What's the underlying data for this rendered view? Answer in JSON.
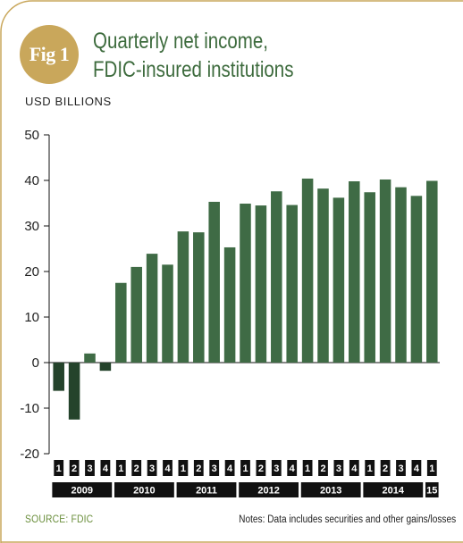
{
  "figure": {
    "badge": "Fig 1",
    "title_line1": "Quarterly net income,",
    "title_line2": "FDIC-insured institutions",
    "unit_label": "USD BILLIONS",
    "source": "SOURCE: FDIC",
    "notes": "Notes: Data includes securities and other gains/losses"
  },
  "colors": {
    "accent_gold": "#c9a75b",
    "title_green": "#3d6b3d",
    "bar_positive": "#3f6b45",
    "bar_negative": "#24432b",
    "axis_dark": "#111111"
  },
  "chart_data": {
    "type": "bar",
    "title": "Quarterly net income, FDIC-insured institutions",
    "ylabel": "USD BILLIONS",
    "ylim": [
      -20,
      50
    ],
    "yticks": [
      -20,
      -10,
      0,
      10,
      20,
      30,
      40,
      50
    ],
    "grid": false,
    "categories": [
      "1",
      "2",
      "3",
      "4",
      "1",
      "2",
      "3",
      "4",
      "1",
      "2",
      "3",
      "4",
      "1",
      "2",
      "3",
      "4",
      "1",
      "2",
      "3",
      "4",
      "1",
      "2",
      "3",
      "4",
      "1"
    ],
    "years": [
      {
        "label": "2009",
        "count": 4
      },
      {
        "label": "2010",
        "count": 4
      },
      {
        "label": "2011",
        "count": 4
      },
      {
        "label": "2012",
        "count": 4
      },
      {
        "label": "2013",
        "count": 4
      },
      {
        "label": "2014",
        "count": 4
      },
      {
        "label": "15",
        "count": 1
      }
    ],
    "values": [
      -6.2,
      -12.5,
      2.0,
      -1.8,
      17.5,
      21.0,
      23.9,
      21.5,
      28.8,
      28.6,
      35.3,
      25.3,
      34.9,
      34.5,
      37.6,
      34.6,
      40.4,
      38.2,
      36.2,
      39.8,
      37.4,
      40.2,
      38.5,
      36.6,
      39.9
    ]
  }
}
